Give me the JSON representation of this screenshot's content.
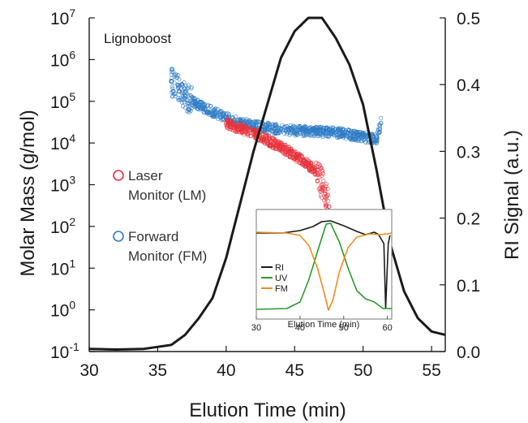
{
  "chart_data": {
    "type": "scatter",
    "annotation": "Lignoboost",
    "xlabel": "Elution Time (min)",
    "ylabel_left": "Molar Mass (g/mol)",
    "ylabel_right": "RI Signal (a.u.)",
    "x_range": [
      30,
      56
    ],
    "x_ticks": [
      "30",
      "35",
      "40",
      "45",
      "50",
      "55"
    ],
    "y_left_scale": "log",
    "y_left_range": [
      0.1,
      10000000
    ],
    "y_left_ticks": [
      {
        "base": "10",
        "exp": "7"
      },
      {
        "base": "10",
        "exp": "6"
      },
      {
        "base": "10",
        "exp": "5"
      },
      {
        "base": "10",
        "exp": "4"
      },
      {
        "base": "10",
        "exp": "3"
      },
      {
        "base": "10",
        "exp": "2"
      },
      {
        "base": "10",
        "exp": "1"
      },
      {
        "base": "10",
        "exp": "0"
      },
      {
        "base": "10",
        "exp": "-1"
      }
    ],
    "y_right_range": [
      0.0,
      0.5
    ],
    "y_right_ticks": [
      "0.5",
      "0.4",
      "0.3",
      "0.2",
      "0.1",
      "0.0"
    ],
    "grid": false,
    "legend": [
      {
        "line1": "Laser",
        "line2": "Monitor (LM)",
        "color": "#e8323c"
      },
      {
        "line1": "Forward",
        "line2": "Monitor (FM)",
        "color": "#2e7bc6"
      }
    ],
    "series": [
      {
        "name": "Laser Monitor (LM)",
        "color": "#e8323c",
        "axis": "left",
        "points": [
          [
            40,
            30000
          ],
          [
            42,
            17000
          ],
          [
            44,
            8000
          ],
          [
            45.5,
            4000
          ],
          [
            46.5,
            2200
          ],
          [
            47.2,
            800
          ],
          [
            47.5,
            300
          ]
        ]
      },
      {
        "name": "Forward Monitor (FM)",
        "color": "#2e7bc6",
        "axis": "left",
        "points": [
          [
            36,
            300000
          ],
          [
            37,
            140000
          ],
          [
            38,
            80000
          ],
          [
            40,
            40000
          ],
          [
            42,
            26000
          ],
          [
            44,
            21000
          ],
          [
            46,
            19000
          ],
          [
            48,
            18000
          ],
          [
            50,
            14000
          ],
          [
            51,
            12000
          ],
          [
            51.3,
            30000
          ]
        ]
      },
      {
        "name": "RI Signal",
        "color": "#1a1a1a",
        "axis": "right",
        "points": [
          [
            30,
            0.004
          ],
          [
            32,
            0.003
          ],
          [
            34,
            0.004
          ],
          [
            36,
            0.01
          ],
          [
            37,
            0.025
          ],
          [
            38,
            0.05
          ],
          [
            39,
            0.08
          ],
          [
            40,
            0.14
          ],
          [
            41,
            0.22
          ],
          [
            42,
            0.3
          ],
          [
            43,
            0.37
          ],
          [
            44,
            0.44
          ],
          [
            45,
            0.48
          ],
          [
            46,
            0.5
          ],
          [
            47,
            0.5
          ],
          [
            48,
            0.47
          ],
          [
            49,
            0.43
          ],
          [
            50,
            0.37
          ],
          [
            51,
            0.27
          ],
          [
            52,
            0.16
          ],
          [
            53,
            0.09
          ],
          [
            54,
            0.05
          ],
          [
            55,
            0.03
          ],
          [
            56,
            0.025
          ]
        ]
      }
    ],
    "inset": {
      "xlabel": "Elution Time (min)",
      "x_ticks": [
        "30",
        "40",
        "50",
        "60"
      ],
      "x_range": [
        30,
        61
      ],
      "legend": [
        {
          "label": "RI",
          "color": "#1a1a1a"
        },
        {
          "label": "UV",
          "color": "#2a9a2a"
        },
        {
          "label": "FM",
          "color": "#f08c1e"
        }
      ]
    }
  }
}
